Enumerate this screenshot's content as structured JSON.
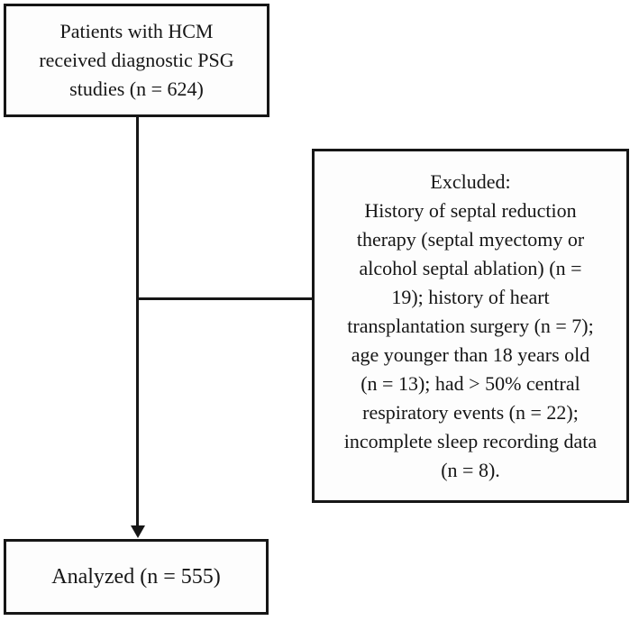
{
  "colors": {
    "background": "#ffffff",
    "box_fill": "#fdfdfd",
    "border": "#161616",
    "text": "#161616"
  },
  "nodes": {
    "enrollment": {
      "n": 624,
      "lines": [
        "Patients with HCM",
        "received diagnostic PSG",
        "studies (n = 624)"
      ],
      "text": "Patients with HCM received diagnostic PSG studies (n = 624)"
    },
    "excluded": {
      "counts": {
        "septal_reduction_therapy": 19,
        "heart_transplantation": 7,
        "age_under_18": 13,
        "central_events_over_50pct": 22,
        "incomplete_recording": 8
      },
      "lines": [
        "Excluded:",
        "History of septal reduction",
        "therapy (septal myectomy or",
        "alcohol septal ablation) (n =",
        "19); history of heart",
        "transplantation surgery (n = 7);",
        "age younger than 18 years old",
        "(n = 13); had > 50% central",
        "respiratory events (n = 22);",
        "incomplete sleep recording data",
        "(n = 8)."
      ],
      "text": "Excluded: History of septal reduction therapy (septal myectomy or alcohol septal ablation) (n = 19); history of heart transplantation surgery (n = 7); age younger than 18 years old (n = 13); had > 50% central respiratory events (n = 22); incomplete sleep recording data (n = 8)."
    },
    "analyzed": {
      "n": 555,
      "label": "Analyzed (n = 555)"
    }
  }
}
